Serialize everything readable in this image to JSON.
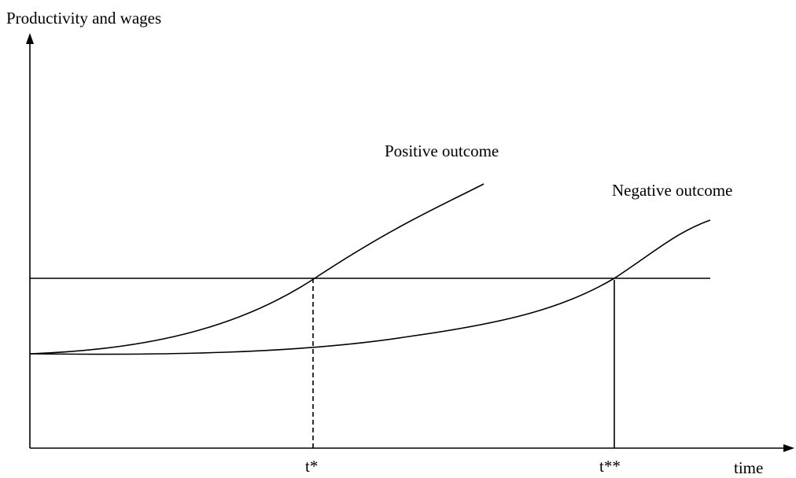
{
  "axes": {
    "y_label": "Productivity and wages",
    "x_label": "time"
  },
  "curves": {
    "positive": "Positive outcome",
    "negative": "Negative outcome"
  },
  "markers": {
    "first": "t*",
    "second": "t**"
  }
}
